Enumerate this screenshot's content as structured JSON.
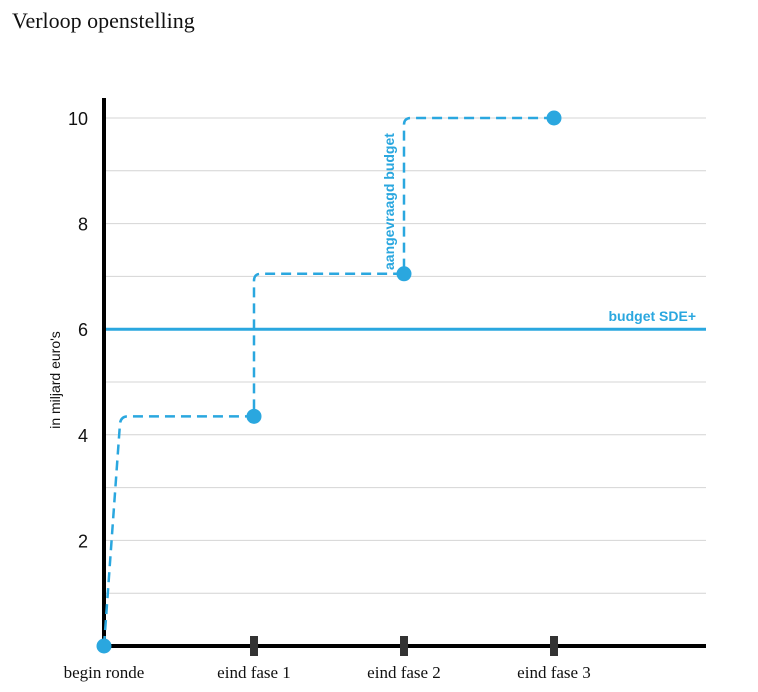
{
  "title": "Verloop openstelling",
  "colors": {
    "accent": "#2aa7df",
    "axis": "#000000",
    "grid": "#d4d4d4"
  },
  "chart_data": {
    "type": "line",
    "title": "Verloop openstelling",
    "ylabel": "in miljard euro's",
    "xlabel": "",
    "ylim": [
      0,
      10
    ],
    "yticks": [
      2,
      4,
      6,
      8,
      10
    ],
    "ytick_labels": [
      "2",
      "4",
      "6",
      "8",
      "10"
    ],
    "grid": true,
    "categories": [
      "begin ronde",
      "eind fase 1",
      "eind fase 2",
      "eind fase 3"
    ],
    "series": [
      {
        "name": "aangevraagd budget",
        "style": "dashed-step",
        "values": [
          0,
          4.35,
          7.05,
          10
        ]
      }
    ],
    "reference_lines": [
      {
        "name": "budget SDE+",
        "y": 6
      }
    ]
  }
}
